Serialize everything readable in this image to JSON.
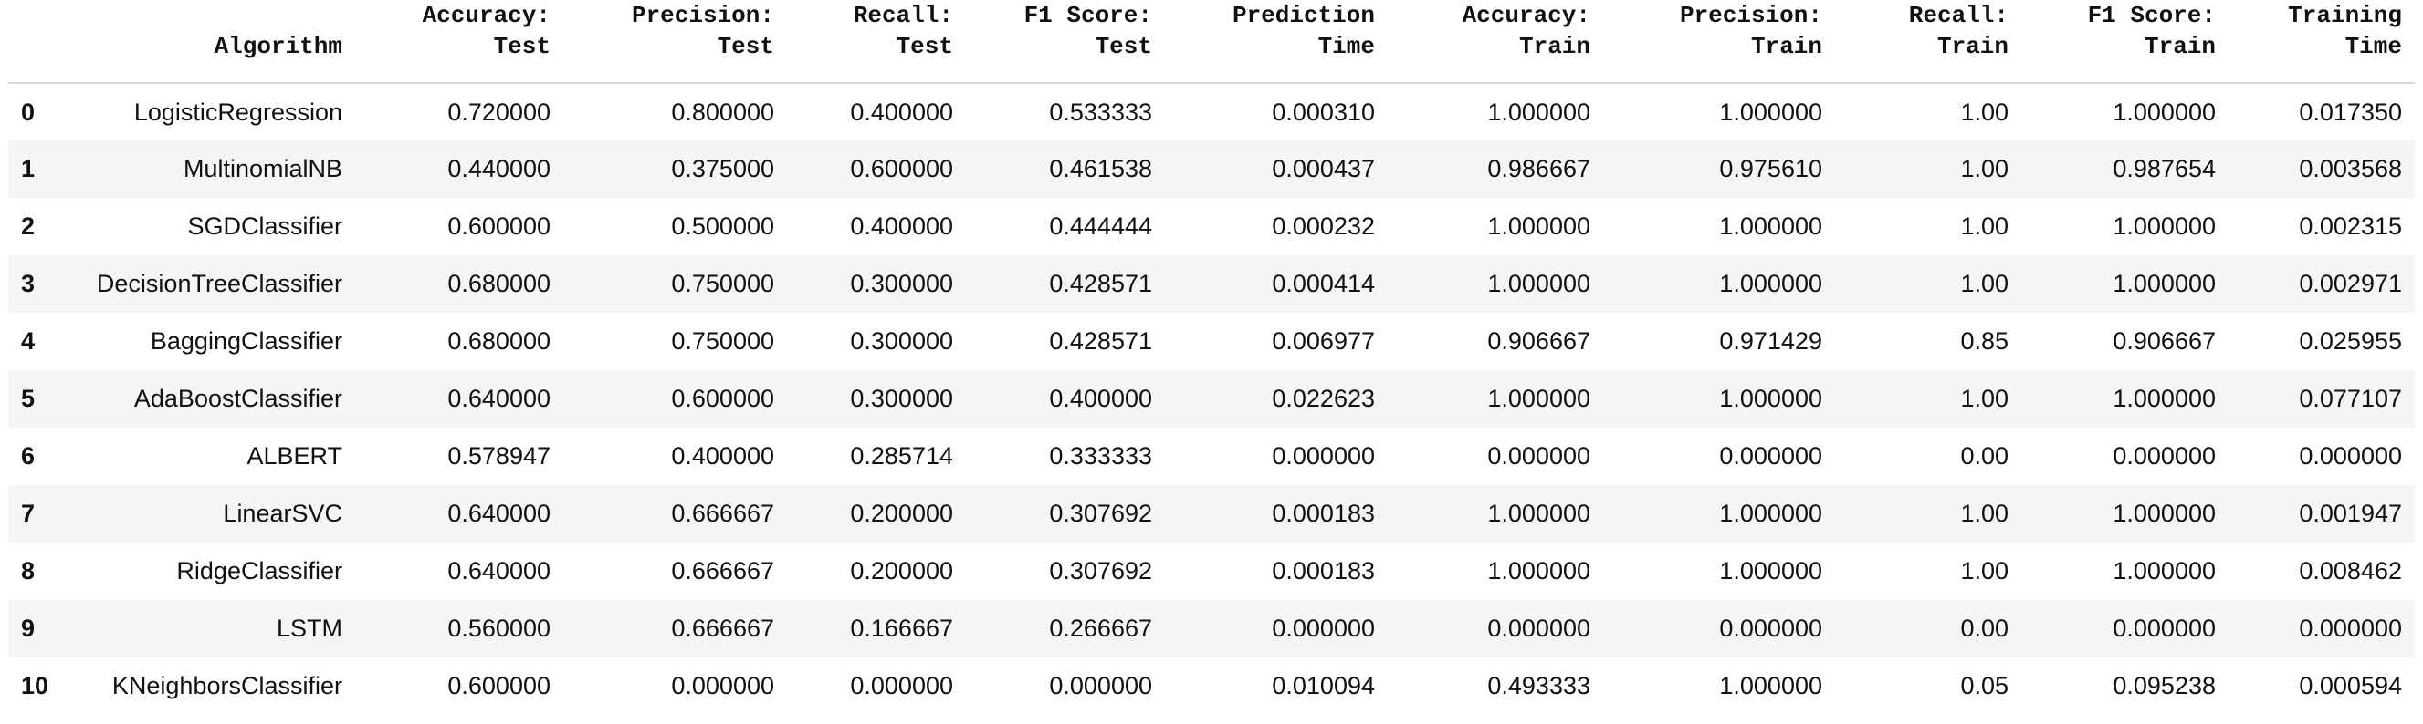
{
  "table": {
    "columns": [
      {
        "line1": "",
        "line2": ""
      },
      {
        "line1": "",
        "line2": "Algorithm"
      },
      {
        "line1": "Accuracy:",
        "line2": "Test"
      },
      {
        "line1": "Precision:",
        "line2": "Test"
      },
      {
        "line1": "Recall:",
        "line2": "Test"
      },
      {
        "line1": "F1 Score:",
        "line2": "Test"
      },
      {
        "line1": "Prediction",
        "line2": "Time"
      },
      {
        "line1": "Accuracy:",
        "line2": "Train"
      },
      {
        "line1": "Precision:",
        "line2": "Train"
      },
      {
        "line1": "Recall:",
        "line2": "Train"
      },
      {
        "line1": "F1 Score:",
        "line2": "Train"
      },
      {
        "line1": "Training",
        "line2": "Time"
      }
    ],
    "rows": [
      [
        "0",
        "LogisticRegression",
        "0.720000",
        "0.800000",
        "0.400000",
        "0.533333",
        "0.000310",
        "1.000000",
        "1.000000",
        "1.00",
        "1.000000",
        "0.017350"
      ],
      [
        "1",
        "MultinomialNB",
        "0.440000",
        "0.375000",
        "0.600000",
        "0.461538",
        "0.000437",
        "0.986667",
        "0.975610",
        "1.00",
        "0.987654",
        "0.003568"
      ],
      [
        "2",
        "SGDClassifier",
        "0.600000",
        "0.500000",
        "0.400000",
        "0.444444",
        "0.000232",
        "1.000000",
        "1.000000",
        "1.00",
        "1.000000",
        "0.002315"
      ],
      [
        "3",
        "DecisionTreeClassifier",
        "0.680000",
        "0.750000",
        "0.300000",
        "0.428571",
        "0.000414",
        "1.000000",
        "1.000000",
        "1.00",
        "1.000000",
        "0.002971"
      ],
      [
        "4",
        "BaggingClassifier",
        "0.680000",
        "0.750000",
        "0.300000",
        "0.428571",
        "0.006977",
        "0.906667",
        "0.971429",
        "0.85",
        "0.906667",
        "0.025955"
      ],
      [
        "5",
        "AdaBoostClassifier",
        "0.640000",
        "0.600000",
        "0.300000",
        "0.400000",
        "0.022623",
        "1.000000",
        "1.000000",
        "1.00",
        "1.000000",
        "0.077107"
      ],
      [
        "6",
        "ALBERT",
        "0.578947",
        "0.400000",
        "0.285714",
        "0.333333",
        "0.000000",
        "0.000000",
        "0.000000",
        "0.00",
        "0.000000",
        "0.000000"
      ],
      [
        "7",
        "LinearSVC",
        "0.640000",
        "0.666667",
        "0.200000",
        "0.307692",
        "0.000183",
        "1.000000",
        "1.000000",
        "1.00",
        "1.000000",
        "0.001947"
      ],
      [
        "8",
        "RidgeClassifier",
        "0.640000",
        "0.666667",
        "0.200000",
        "0.307692",
        "0.000183",
        "1.000000",
        "1.000000",
        "1.00",
        "1.000000",
        "0.008462"
      ],
      [
        "9",
        "LSTM",
        "0.560000",
        "0.666667",
        "0.166667",
        "0.266667",
        "0.000000",
        "0.000000",
        "0.000000",
        "0.00",
        "0.000000",
        "0.000000"
      ],
      [
        "10",
        "KNeighborsClassifier",
        "0.600000",
        "0.000000",
        "0.000000",
        "0.000000",
        "0.010094",
        "0.493333",
        "1.000000",
        "0.05",
        "0.095238",
        "0.000594"
      ]
    ]
  }
}
